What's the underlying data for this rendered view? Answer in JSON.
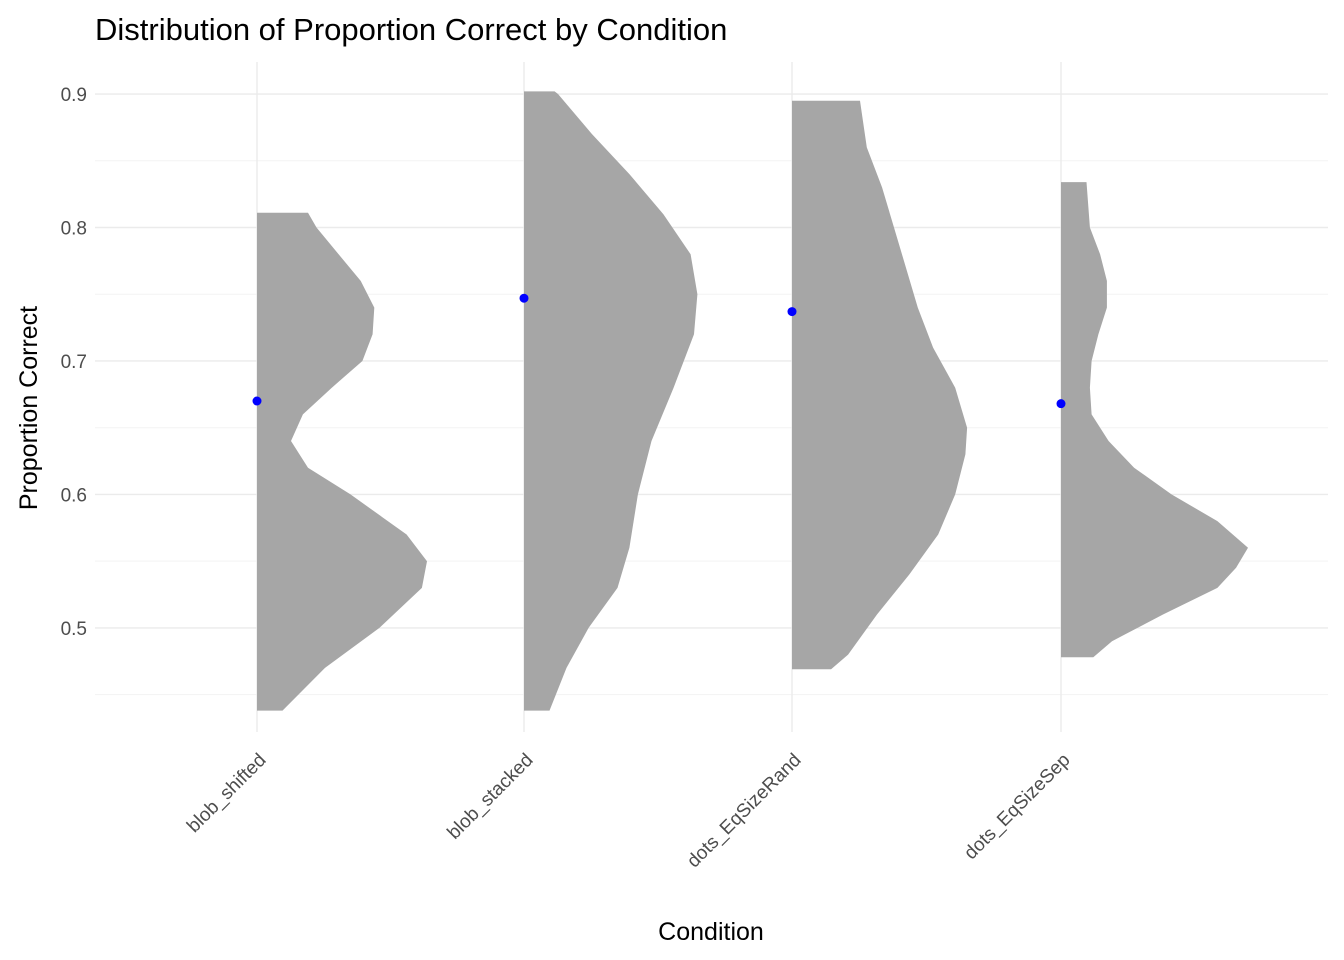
{
  "chart_data": {
    "type": "violin",
    "title": "Distribution of Proportion Correct by Condition",
    "xlabel": "Condition",
    "ylabel": "Proportion Correct",
    "ylim": [
      0.422,
      0.924
    ],
    "yticks": [
      0.5,
      0.6,
      0.7,
      0.8,
      0.9
    ],
    "yticklabels": [
      "0.5",
      "0.6",
      "0.7",
      "0.8",
      "0.9"
    ],
    "grid": true,
    "violin_color": "#a6a6a6",
    "mean_color": "#0000ff",
    "categories": [
      "blob_shifted",
      "blob_stacked",
      "dots_EqSizeRand",
      "dots_EqSizeSep"
    ],
    "means": [
      0.67,
      0.747,
      0.737,
      0.668
    ],
    "density": [
      {
        "category": "blob_shifted",
        "min": 0.438,
        "max": 0.811,
        "y": [
          0.438,
          0.47,
          0.5,
          0.53,
          0.55,
          0.57,
          0.6,
          0.62,
          0.64,
          0.66,
          0.68,
          0.7,
          0.72,
          0.74,
          0.76,
          0.78,
          0.8,
          0.811
        ],
        "width": [
          0.15,
          0.4,
          0.72,
          0.97,
          1.0,
          0.88,
          0.55,
          0.3,
          0.2,
          0.27,
          0.44,
          0.62,
          0.68,
          0.69,
          0.61,
          0.48,
          0.35,
          0.3
        ]
      },
      {
        "category": "blob_stacked",
        "min": 0.438,
        "max": 0.902,
        "y": [
          0.438,
          0.47,
          0.5,
          0.53,
          0.56,
          0.6,
          0.64,
          0.68,
          0.72,
          0.75,
          0.78,
          0.81,
          0.84,
          0.87,
          0.9,
          0.902
        ],
        "width": [
          0.15,
          0.25,
          0.38,
          0.55,
          0.62,
          0.67,
          0.75,
          0.88,
          1.0,
          1.02,
          0.98,
          0.82,
          0.62,
          0.4,
          0.2,
          0.18
        ]
      },
      {
        "category": "dots_EqSizeRand",
        "min": 0.469,
        "max": 0.895,
        "y": [
          0.469,
          0.48,
          0.51,
          0.54,
          0.57,
          0.6,
          0.63,
          0.65,
          0.68,
          0.71,
          0.74,
          0.77,
          0.8,
          0.83,
          0.86,
          0.895
        ],
        "width": [
          0.23,
          0.33,
          0.5,
          0.69,
          0.86,
          0.96,
          1.02,
          1.03,
          0.96,
          0.83,
          0.74,
          0.67,
          0.6,
          0.53,
          0.44,
          0.4
        ]
      },
      {
        "category": "dots_EqSizeSep",
        "min": 0.478,
        "max": 0.834,
        "y": [
          0.478,
          0.49,
          0.51,
          0.53,
          0.545,
          0.56,
          0.58,
          0.6,
          0.62,
          0.64,
          0.66,
          0.68,
          0.7,
          0.72,
          0.74,
          0.76,
          0.78,
          0.8,
          0.834
        ],
        "width": [
          0.19,
          0.3,
          0.6,
          0.92,
          1.03,
          1.1,
          0.92,
          0.65,
          0.43,
          0.28,
          0.18,
          0.17,
          0.18,
          0.22,
          0.27,
          0.27,
          0.23,
          0.17,
          0.15
        ]
      }
    ]
  }
}
